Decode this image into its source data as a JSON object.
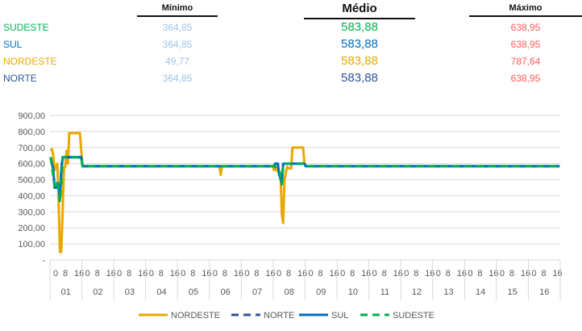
{
  "table": {
    "headers": {
      "min": "Mínimo",
      "avg": "Médio",
      "max": "Máximo"
    },
    "rows": [
      {
        "region": "SUDESTE",
        "min": "364,85",
        "avg": "583,88",
        "max": "638,95",
        "color": "#00B050"
      },
      {
        "region": "SUL",
        "min": "364,85",
        "avg": "583,88",
        "max": "638,95",
        "color": "#0070C0"
      },
      {
        "region": "NORDESTE",
        "min": "49,77",
        "avg": "583,88",
        "max": "787,64",
        "color": "#E8A800"
      },
      {
        "region": "NORTE",
        "min": "364,85",
        "avg": "583,88",
        "max": "638,95",
        "color": "#2F5597"
      }
    ],
    "min_color": "#9DC3E6",
    "max_color": "#FF5B5B"
  },
  "chart_data": {
    "type": "line",
    "ylim": [
      0,
      900
    ],
    "yticks": [
      "-",
      "100,00",
      "200,00",
      "300,00",
      "400,00",
      "500,00",
      "600,00",
      "700,00",
      "800,00",
      "900,00"
    ],
    "hour_ticks": [
      "0",
      "8",
      "16"
    ],
    "days": [
      "01",
      "02",
      "03",
      "04",
      "05",
      "06",
      "07",
      "08",
      "09",
      "10",
      "11",
      "12",
      "13",
      "14",
      "15",
      "16"
    ],
    "grid": true,
    "legend": "bottom",
    "baseline": 583.88,
    "point_format": "[day, hour, value] keypoints, linear between",
    "series": [
      {
        "name": "NORDESTE",
        "color": "#E8A800",
        "dash": false,
        "points": [
          [
            1,
            0,
            680
          ],
          [
            1,
            1,
            690
          ],
          [
            1,
            2,
            650
          ],
          [
            1,
            3,
            560
          ],
          [
            1,
            5,
            600
          ],
          [
            1,
            6,
            370
          ],
          [
            1,
            7,
            50
          ],
          [
            1,
            8,
            50
          ],
          [
            1,
            9,
            300
          ],
          [
            1,
            10,
            570
          ],
          [
            1,
            11,
            580
          ],
          [
            1,
            12,
            680
          ],
          [
            1,
            13,
            600
          ],
          [
            1,
            14,
            790
          ],
          [
            1,
            22,
            790
          ],
          [
            2,
            0,
            583.88
          ],
          [
            6,
            7,
            583.88
          ],
          [
            6,
            8,
            530
          ],
          [
            6,
            9,
            583.88
          ],
          [
            7,
            23,
            583.88
          ],
          [
            8,
            0,
            560
          ],
          [
            8,
            1,
            560
          ],
          [
            8,
            2,
            580
          ],
          [
            8,
            3,
            550
          ],
          [
            8,
            5,
            540
          ],
          [
            8,
            6,
            280
          ],
          [
            8,
            7,
            230
          ],
          [
            8,
            8,
            500
          ],
          [
            8,
            10,
            580
          ],
          [
            8,
            11,
            570
          ],
          [
            8,
            13,
            570
          ],
          [
            8,
            14,
            700
          ],
          [
            8,
            22,
            700
          ],
          [
            8,
            23,
            600
          ],
          [
            9,
            0,
            583.88
          ],
          [
            16,
            23,
            583.88
          ]
        ]
      },
      {
        "name": "NORTE",
        "color": "#2F5597",
        "dash": true,
        "points": [
          [
            1,
            0,
            640
          ],
          [
            1,
            2,
            560
          ],
          [
            1,
            3,
            450
          ],
          [
            1,
            4,
            450
          ],
          [
            1,
            5,
            480
          ],
          [
            1,
            6,
            470
          ],
          [
            1,
            7,
            380
          ],
          [
            1,
            8,
            560
          ],
          [
            1,
            9,
            640
          ],
          [
            1,
            23,
            640
          ],
          [
            2,
            0,
            583.88
          ],
          [
            8,
            0,
            583.88
          ],
          [
            8,
            1,
            600
          ],
          [
            8,
            3,
            600
          ],
          [
            8,
            4,
            530
          ],
          [
            8,
            6,
            480
          ],
          [
            8,
            7,
            600
          ],
          [
            8,
            23,
            600
          ],
          [
            9,
            0,
            583.88
          ],
          [
            16,
            23,
            583.88
          ]
        ]
      },
      {
        "name": "SUL",
        "color": "#0070C0",
        "dash": false,
        "points": [
          [
            1,
            0,
            640
          ],
          [
            1,
            2,
            560
          ],
          [
            1,
            3,
            450
          ],
          [
            1,
            4,
            450
          ],
          [
            1,
            5,
            480
          ],
          [
            1,
            6,
            470
          ],
          [
            1,
            7,
            380
          ],
          [
            1,
            8,
            560
          ],
          [
            1,
            9,
            640
          ],
          [
            1,
            23,
            640
          ],
          [
            2,
            0,
            583.88
          ],
          [
            8,
            0,
            583.88
          ],
          [
            8,
            1,
            600
          ],
          [
            8,
            3,
            600
          ],
          [
            8,
            4,
            530
          ],
          [
            8,
            6,
            480
          ],
          [
            8,
            7,
            600
          ],
          [
            8,
            23,
            600
          ],
          [
            9,
            0,
            583.88
          ],
          [
            16,
            23,
            583.88
          ]
        ]
      },
      {
        "name": "SUDESTE",
        "color": "#00B050",
        "dash": true,
        "points": [
          [
            1,
            0,
            640
          ],
          [
            1,
            3,
            460
          ],
          [
            1,
            5,
            490
          ],
          [
            1,
            7,
            360
          ],
          [
            1,
            8,
            470
          ],
          [
            1,
            9,
            630
          ],
          [
            1,
            10,
            640
          ],
          [
            1,
            23,
            640
          ],
          [
            2,
            0,
            583.88
          ],
          [
            8,
            0,
            583.88
          ],
          [
            8,
            4,
            560
          ],
          [
            8,
            6,
            470
          ],
          [
            8,
            7,
            600
          ],
          [
            8,
            23,
            600
          ],
          [
            9,
            0,
            583.88
          ],
          [
            16,
            23,
            583.88
          ]
        ]
      }
    ]
  }
}
